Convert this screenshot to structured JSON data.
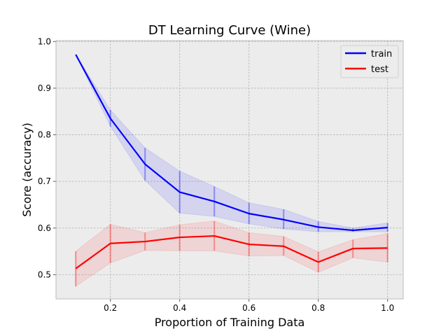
{
  "chart_data": {
    "type": "line",
    "title": "DT Learning Curve (Wine)",
    "xlabel": "Proportion of Training Data",
    "ylabel": "Score (accuracy)",
    "x": [
      0.1,
      0.2,
      0.3,
      0.4,
      0.5,
      0.6,
      0.7,
      0.8,
      0.9,
      1.0
    ],
    "xlim": [
      0.043,
      1.045
    ],
    "ylim": [
      0.448,
      1.002
    ],
    "xticks": [
      0.2,
      0.4,
      0.6,
      0.8,
      1.0
    ],
    "xtick_labels": [
      "0.2",
      "0.4",
      "0.6",
      "0.8",
      "1.0"
    ],
    "yticks": [
      0.5,
      0.6,
      0.7,
      0.8,
      0.9,
      1.0
    ],
    "ytick_labels": [
      "0.5",
      "0.6",
      "0.7",
      "0.8",
      "0.9",
      "1.0"
    ],
    "grid": true,
    "legend_position": "top-right",
    "background": "#ececec",
    "series": [
      {
        "name": "train",
        "color": "#0000ff",
        "band_color": "#0000ff",
        "values": [
          0.972,
          0.835,
          0.737,
          0.677,
          0.657,
          0.631,
          0.618,
          0.602,
          0.595,
          0.601
        ],
        "lower": [
          0.972,
          0.818,
          0.702,
          0.632,
          0.625,
          0.609,
          0.598,
          0.592,
          0.592,
          0.592
        ],
        "upper": [
          0.972,
          0.853,
          0.772,
          0.722,
          0.689,
          0.654,
          0.64,
          0.614,
          0.6,
          0.611
        ]
      },
      {
        "name": "test",
        "color": "#ff0000",
        "band_color": "#ff0000",
        "values": [
          0.513,
          0.567,
          0.571,
          0.58,
          0.583,
          0.565,
          0.561,
          0.527,
          0.556,
          0.557
        ],
        "lower": [
          0.475,
          0.525,
          0.552,
          0.551,
          0.551,
          0.54,
          0.541,
          0.505,
          0.536,
          0.527
        ],
        "upper": [
          0.55,
          0.608,
          0.59,
          0.607,
          0.615,
          0.59,
          0.582,
          0.549,
          0.575,
          0.588
        ]
      }
    ]
  }
}
